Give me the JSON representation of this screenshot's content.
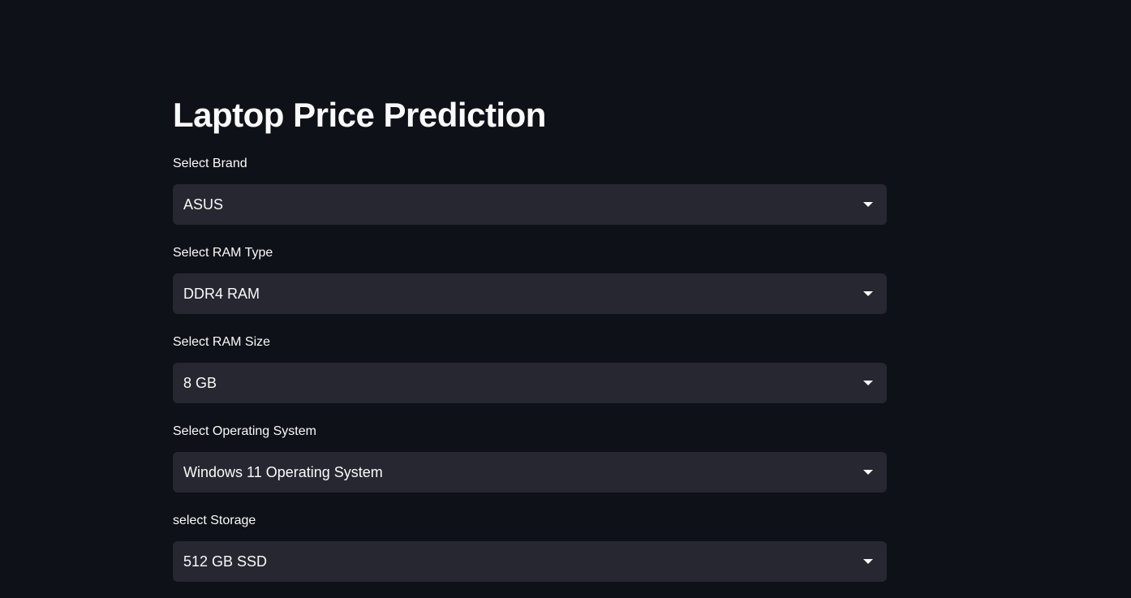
{
  "page": {
    "title": "Laptop Price Prediction"
  },
  "fields": [
    {
      "label": "Select Brand",
      "value": "ASUS"
    },
    {
      "label": "Select RAM Type",
      "value": "DDR4 RAM"
    },
    {
      "label": "Select RAM Size",
      "value": "8 GB"
    },
    {
      "label": "Select Operating System",
      "value": "Windows 11 Operating System"
    },
    {
      "label": "select Storage",
      "value": "512 GB SSD"
    }
  ],
  "icons": {
    "dropdown": "chevron-down-icon"
  },
  "colors": {
    "background": "#0e1117",
    "select_background": "#262730",
    "text": "#fafafa"
  }
}
